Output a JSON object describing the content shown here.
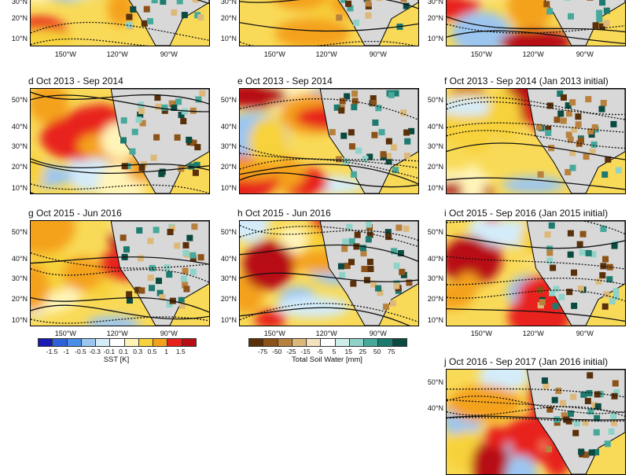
{
  "panels": [
    {
      "id": "a",
      "title": ""
    },
    {
      "id": "b",
      "title": ""
    },
    {
      "id": "c",
      "title": ""
    },
    {
      "id": "d",
      "title": "d Oct 2013 - Sep 2014"
    },
    {
      "id": "e",
      "title": "e Oct 2013 - Sep 2014"
    },
    {
      "id": "f",
      "title": "f Oct 2013 - Sep 2014 (Jan 2013 initial)"
    },
    {
      "id": "g",
      "title": "g Oct 2015 - Jun 2016"
    },
    {
      "id": "h",
      "title": "h Oct 2015 - Jun 2016"
    },
    {
      "id": "i",
      "title": "i Oct 2015 - Sep 2016 (Jan 2015 initial)"
    },
    {
      "id": "j",
      "title": "j Oct 2016 - Sep 2017 (Jan 2016 initial)"
    }
  ],
  "lat_labels": [
    "50°N",
    "40°N",
    "30°N",
    "20°N",
    "10°N"
  ],
  "lon_labels": [
    "150°W",
    "120°W",
    "90°W"
  ],
  "sst_colorbar": {
    "title": "SST [K]",
    "ticks": [
      "-1.5",
      "-1",
      "-0.5",
      "-0.3",
      "-0.1",
      "0.1",
      "0.3",
      "0.5",
      "1",
      "1.5"
    ],
    "colors": [
      "#1a1ab0",
      "#2f62d8",
      "#4a8fe6",
      "#9cc6f0",
      "#d4ecfa",
      "#ffffff",
      "#fff4b8",
      "#f7d23a",
      "#f4a21c",
      "#e8201a",
      "#b80d14"
    ]
  },
  "soil_colorbar": {
    "title": "Total Soil Water [mm]",
    "ticks": [
      "-75",
      "-50",
      "-25",
      "-15",
      "-5",
      "5",
      "15",
      "25",
      "50",
      "75"
    ],
    "colors": [
      "#5a300a",
      "#8c5218",
      "#b8823e",
      "#dcb97a",
      "#f2e2c0",
      "#ffffff",
      "#cdeee9",
      "#8fd3c8",
      "#47a99c",
      "#1c7a6e",
      "#0b4a40"
    ]
  }
}
